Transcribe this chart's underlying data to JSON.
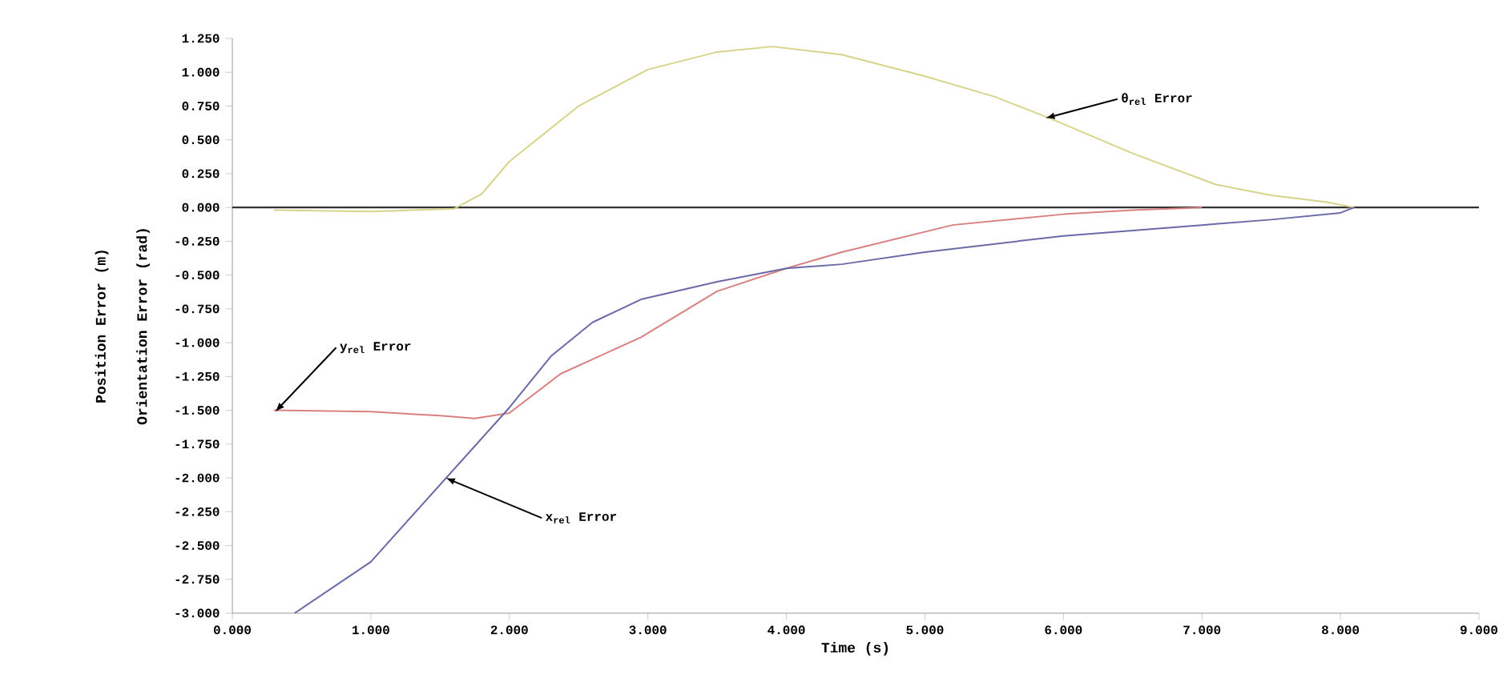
{
  "chart_data": {
    "type": "line",
    "xlabel": "Time (s)",
    "ylabel": "Position Error (m)",
    "annotations": [
      "Orientation Error (rad)",
      {
        "text": "θ$_{rel}$ Error",
        "x": 5.87,
        "y": 0.66
      },
      {
        "text": "y$_{rel}$ Error",
        "x": 0.31,
        "y": -1.51
      },
      {
        "text": "x$_{rel}$ Error",
        "x": 1.54,
        "y": -2.0
      }
    ],
    "xlim": [
      0,
      9
    ],
    "xticks": [
      {
        "value": 0,
        "label": "0.000"
      },
      {
        "value": 1,
        "label": "1.000"
      },
      {
        "value": 2,
        "label": "2.000"
      },
      {
        "value": 3,
        "label": "3.000"
      },
      {
        "value": 4,
        "label": "4.000"
      },
      {
        "value": 5,
        "label": "5.000"
      },
      {
        "value": 6,
        "label": "6.000"
      },
      {
        "value": 7,
        "label": "7.000"
      },
      {
        "value": 8,
        "label": "8.000"
      },
      {
        "value": 9,
        "label": "9.000"
      }
    ],
    "ylim": [
      -3,
      1.25
    ],
    "yticks": [
      {
        "value": 1.25,
        "label": "1.250"
      },
      {
        "value": 1,
        "label": "1.000"
      },
      {
        "value": 0.75,
        "label": "0.750"
      },
      {
        "value": 0.5,
        "label": "0.500"
      },
      {
        "value": 0.25,
        "label": "0.250"
      },
      {
        "value": 0,
        "label": "0.000"
      },
      {
        "value": -0.25,
        "label": "-0.250"
      },
      {
        "value": -0.5,
        "label": "-0.500"
      },
      {
        "value": -0.75,
        "label": "-0.750"
      },
      {
        "value": -1,
        "label": "-1.000"
      },
      {
        "value": -1.25,
        "label": "-1.250"
      },
      {
        "value": -1.5,
        "label": "-1.500"
      },
      {
        "value": -1.75,
        "label": "-1.750"
      },
      {
        "value": -2,
        "label": "-2.000"
      },
      {
        "value": -2.25,
        "label": "-2.250"
      },
      {
        "value": -2.5,
        "label": "-2.500"
      },
      {
        "value": -2.75,
        "label": "-2.750"
      },
      {
        "value": -3,
        "label": "-3.000"
      }
    ],
    "grid": false,
    "legend": false,
    "marker": "none",
    "line_style": "solid",
    "ref_lines": [
      {
        "axis": "y",
        "value": 0,
        "color": "#333333"
      }
    ],
    "series": [
      {
        "color": "#d6d48a",
        "x": [
          0.3,
          1.0,
          1.6,
          1.8,
          2.0,
          2.5,
          3.0,
          3.5,
          3.9,
          4.4,
          5.0,
          5.5,
          5.9,
          6.5,
          7.1,
          7.5,
          7.9,
          8.1
        ],
        "values": [
          -0.02,
          -0.03,
          -0.01,
          0.1,
          0.34,
          0.75,
          1.02,
          1.15,
          1.19,
          1.13,
          0.97,
          0.82,
          0.66,
          0.4,
          0.17,
          0.09,
          0.04,
          0.0
        ]
      },
      {
        "color": "#d98080",
        "x": [
          0.3,
          1.0,
          1.5,
          1.75,
          2.0,
          2.37,
          2.95,
          3.5,
          4.0,
          4.4,
          5.2,
          6.0,
          6.5,
          7.0
        ],
        "values": [
          -1.5,
          -1.51,
          -1.54,
          -1.56,
          -1.52,
          -1.23,
          -0.96,
          -0.62,
          -0.45,
          -0.33,
          -0.13,
          -0.05,
          -0.02,
          0.0
        ]
      },
      {
        "color": "#6a6aa8",
        "x": [
          0.45,
          1.0,
          1.5,
          2.0,
          2.3,
          2.6,
          2.95,
          3.5,
          4.0,
          4.4,
          5.0,
          6.0,
          7.0,
          7.5,
          8.0,
          8.1
        ],
        "values": [
          -3.0,
          -2.62,
          -2.05,
          -1.48,
          -1.1,
          -0.85,
          -0.68,
          -0.55,
          -0.45,
          -0.42,
          -0.33,
          -0.21,
          -0.13,
          -0.09,
          -0.04,
          0.0
        ]
      }
    ]
  }
}
